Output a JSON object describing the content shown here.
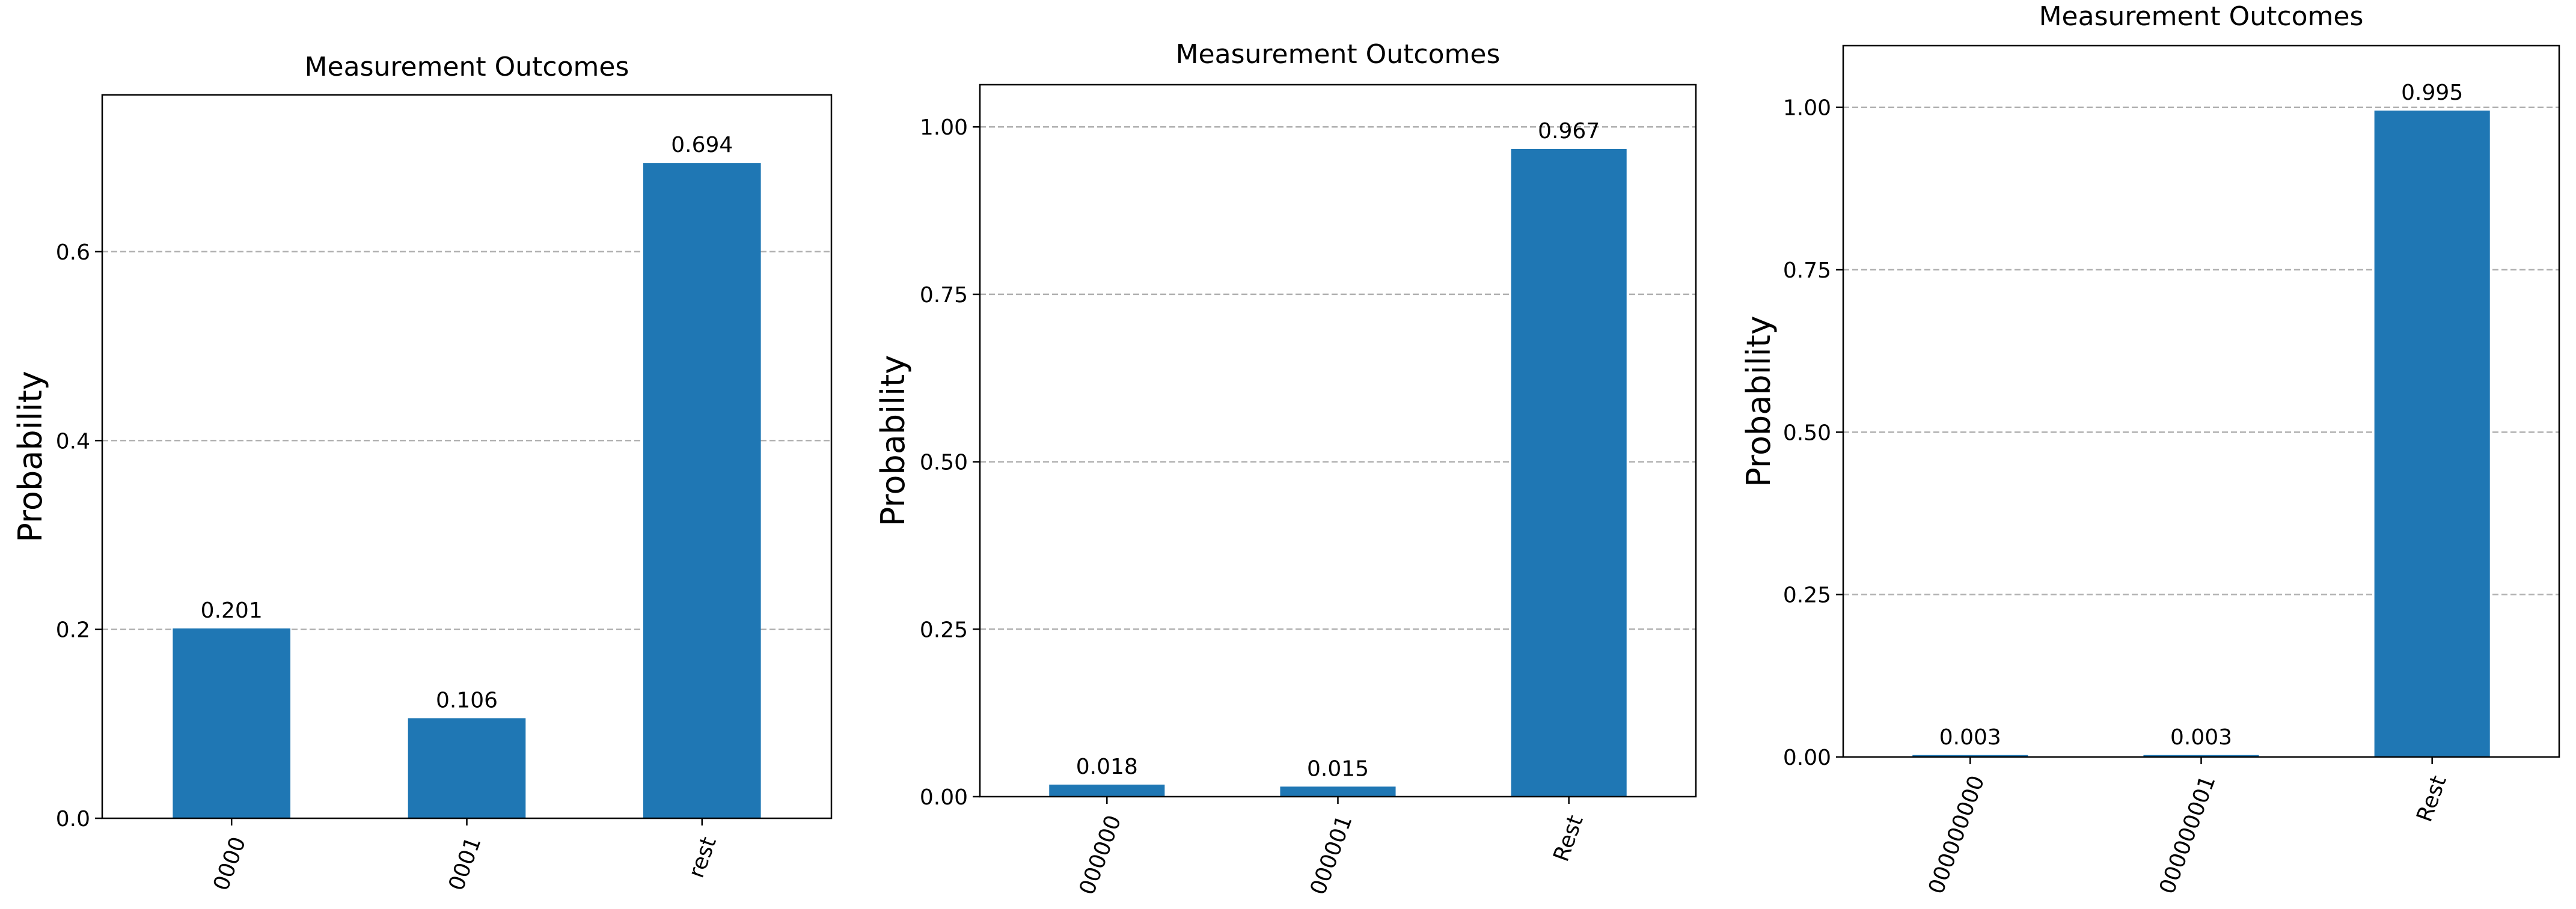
{
  "chart_data": [
    {
      "type": "bar",
      "title": "Measurement Outcomes",
      "xlabel": "",
      "ylabel": "Probability",
      "categories": [
        "0000",
        "0001",
        "rest"
      ],
      "values": [
        0.201,
        0.106,
        0.694
      ],
      "value_labels": [
        "0.201",
        "0.106",
        "0.694"
      ],
      "yticks": [
        0.0,
        0.2,
        0.4,
        0.6
      ],
      "ytick_labels": [
        "0.0",
        "0.2",
        "0.4",
        "0.6"
      ],
      "ylim": [
        0,
        0.766
      ],
      "grid": "y, dashed",
      "bar_color": "#1f77b4"
    },
    {
      "type": "bar",
      "title": "Measurement Outcomes",
      "xlabel": "",
      "ylabel": "Probability",
      "categories": [
        "000000",
        "000001",
        "Rest"
      ],
      "values": [
        0.018,
        0.015,
        0.967
      ],
      "value_labels": [
        "0.018",
        "0.015",
        "0.967"
      ],
      "yticks": [
        0.0,
        0.25,
        0.5,
        0.75,
        1.0
      ],
      "ytick_labels": [
        "0.00",
        "0.25",
        "0.50",
        "0.75",
        "1.00"
      ],
      "ylim": [
        0,
        1.063
      ],
      "grid": "y, dashed",
      "bar_color": "#1f77b4"
    },
    {
      "type": "bar",
      "title": "Measurement Outcomes",
      "xlabel": "",
      "ylabel": "Probability",
      "categories": [
        "000000000",
        "000000001",
        "Rest"
      ],
      "values": [
        0.003,
        0.003,
        0.995
      ],
      "value_labels": [
        "0.003",
        "0.003",
        "0.995"
      ],
      "yticks": [
        0.0,
        0.25,
        0.5,
        0.75,
        1.0
      ],
      "ytick_labels": [
        "0.00",
        "0.25",
        "0.50",
        "0.75",
        "1.00"
      ],
      "ylim": [
        0,
        1.095
      ],
      "grid": "y, dashed",
      "bar_color": "#1f77b4"
    }
  ]
}
